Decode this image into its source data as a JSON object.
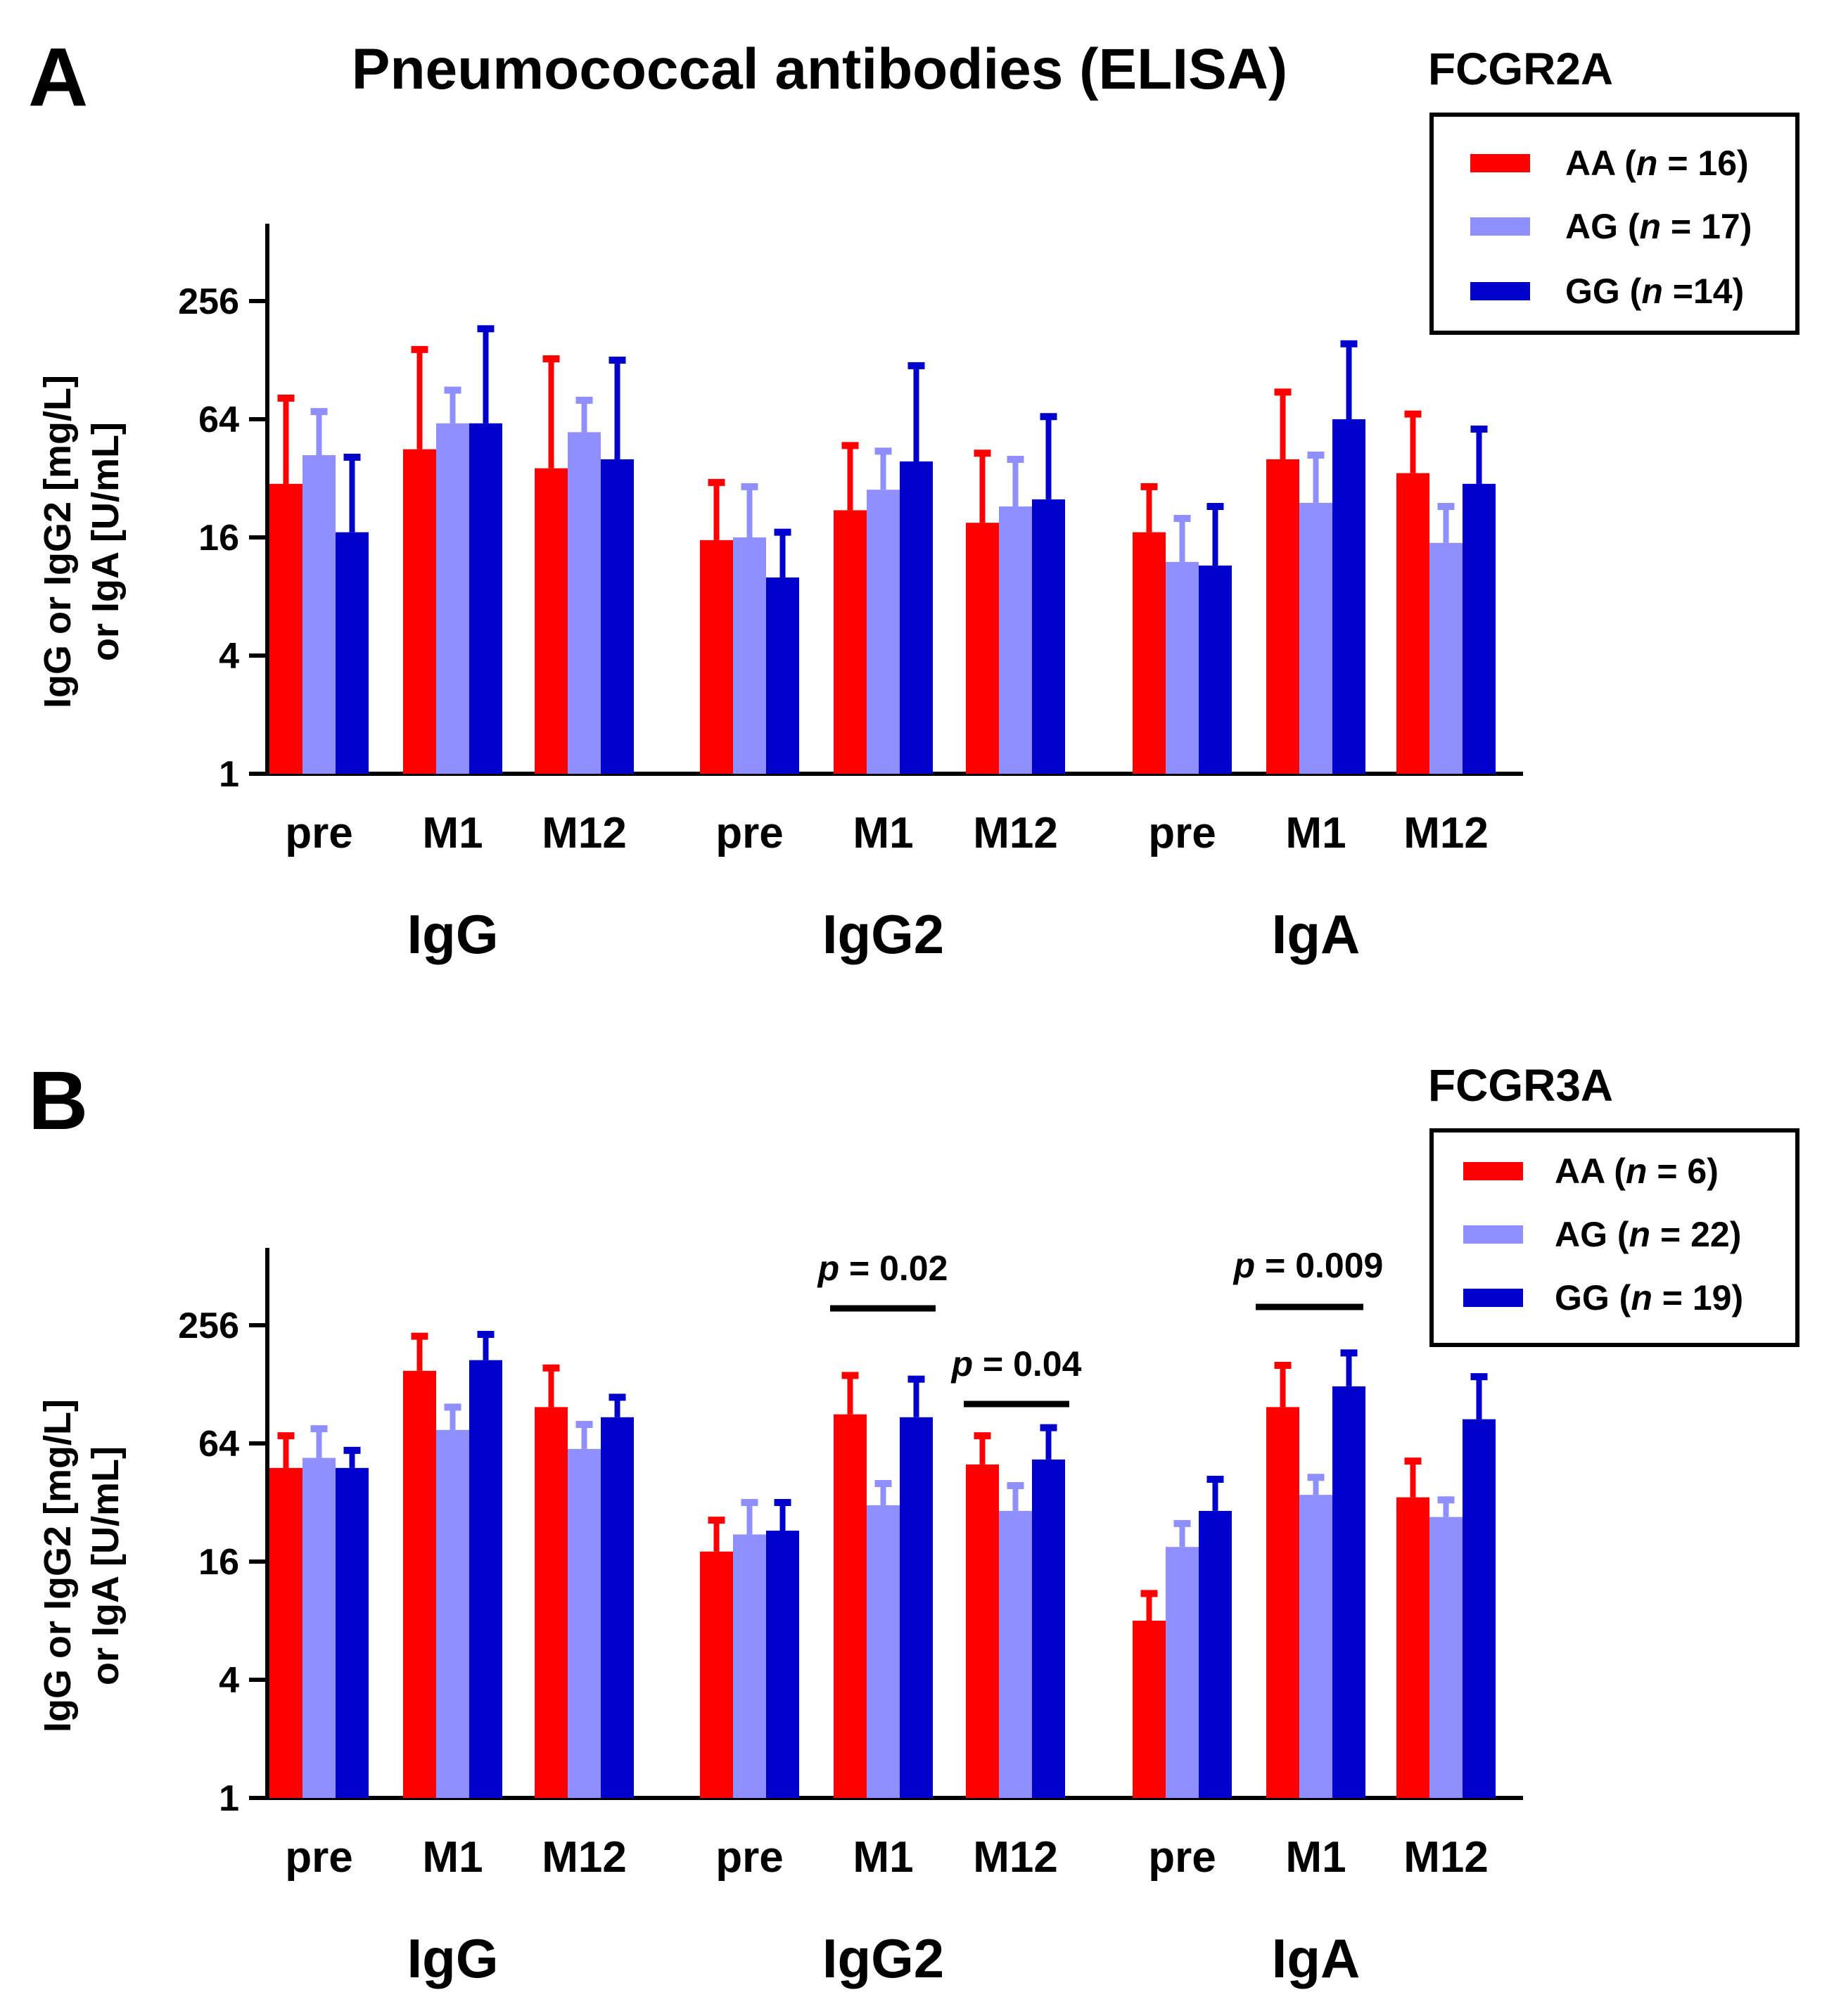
{
  "title": "Pneumococcal antibodies (ELISA)",
  "colors": {
    "AA": "#ff0000",
    "AG": "#8f8fff",
    "GG": "#0000cc"
  },
  "chart_data": [
    {
      "panel": "A",
      "gene": "FCGR2A",
      "type": "bar",
      "yscale": "log2",
      "ylim": [
        1,
        600
      ],
      "yticks": [
        "1",
        "4",
        "16",
        "64",
        "256"
      ],
      "ylabel_line1": "IgG or IgG2 [mg/L]",
      "ylabel_line2": "or IgA [U/mL]",
      "categories": [
        "pre",
        "M1",
        "M12",
        "pre",
        "M1",
        "M12",
        "pre",
        "M1",
        "M12"
      ],
      "groups": [
        "IgG",
        "IgG2",
        "IgA"
      ],
      "legend": [
        {
          "key": "AA",
          "label": "AA (",
          "n": "n",
          "rest": " = 16)"
        },
        {
          "key": "AG",
          "label": "AG (",
          "n": "n",
          "rest": " = 17)"
        },
        {
          "key": "GG",
          "label": "GG (",
          "n": "n",
          "rest": " =14)"
        }
      ],
      "series": [
        {
          "name": "AA",
          "values": [
            30,
            45,
            36,
            15.5,
            22,
            19,
            17,
            40,
            34
          ],
          "errors": [
            82,
            145,
            130,
            30.5,
            47,
            43,
            29,
            88,
            68
          ]
        },
        {
          "name": "AG",
          "values": [
            42,
            61,
            55,
            16,
            28,
            23,
            12,
            24,
            15
          ],
          "errors": [
            70,
            90,
            80,
            29,
            44,
            40,
            20,
            42,
            23
          ]
        },
        {
          "name": "GG",
          "values": [
            17,
            61,
            40,
            10,
            39,
            25,
            11.5,
            64,
            30
          ],
          "errors": [
            41,
            185,
            128,
            17,
            120,
            66,
            23,
            155,
            57
          ]
        }
      ],
      "annotations": []
    },
    {
      "panel": "B",
      "gene": "FCGR3A",
      "type": "bar",
      "yscale": "log2",
      "ylim": [
        1,
        600
      ],
      "yticks": [
        "1",
        "4",
        "16",
        "64",
        "256"
      ],
      "ylabel_line1": "IgG or IgG2 [mg/L]",
      "ylabel_line2": "or IgA [U/mL]",
      "categories": [
        "pre",
        "M1",
        "M12",
        "pre",
        "M1",
        "M12",
        "pre",
        "M1",
        "M12"
      ],
      "groups": [
        "IgG",
        "IgG2",
        "IgA"
      ],
      "legend": [
        {
          "key": "AA",
          "label": "AA (",
          "n": "n",
          "rest": " = 6)"
        },
        {
          "key": "AG",
          "label": "AG (",
          "n": "n",
          "rest": " = 22)"
        },
        {
          "key": "GG",
          "label": "GG (",
          "n": "n",
          "rest": " = 19)"
        }
      ],
      "series": [
        {
          "name": "AA",
          "values": [
            48,
            150,
            98,
            18,
            90,
            50,
            8,
            98,
            34
          ],
          "errors": [
            70,
            225,
            155,
            26,
            142,
            70,
            11,
            160,
            52
          ]
        },
        {
          "name": "AG",
          "values": [
            54,
            75,
            60,
            22,
            31,
            29,
            19,
            35,
            27
          ],
          "errors": [
            76,
            98,
            80,
            32,
            40,
            39,
            25,
            43,
            33
          ]
        },
        {
          "name": "GG",
          "values": [
            48,
            170,
            87,
            23,
            87,
            53,
            29,
            125,
            85
          ],
          "errors": [
            59,
            230,
            110,
            32,
            136,
            77,
            42,
            185,
            140
          ]
        }
      ],
      "annotations": [
        {
          "label": "p",
          "value": " = 0.02",
          "from_category": 4,
          "to_category": 4
        },
        {
          "label": "p",
          "value": " = 0.04",
          "from_category": 5,
          "to_category": 5
        },
        {
          "label": "p",
          "value": " = 0.009",
          "from_category": 7,
          "to_category": 7
        }
      ]
    }
  ]
}
